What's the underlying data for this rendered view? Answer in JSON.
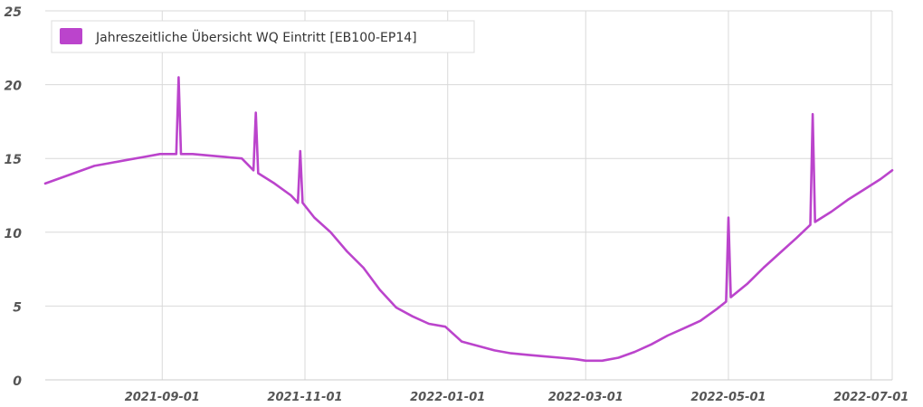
{
  "chart_data": {
    "type": "line",
    "title": "",
    "xlabel": "",
    "ylabel": "",
    "ylim": [
      0,
      25
    ],
    "xlim": [
      "2021-07-13",
      "2022-07-10"
    ],
    "yticks": [
      0,
      5,
      10,
      15,
      20,
      25
    ],
    "xticks": [
      "2021-09-01",
      "2021-11-01",
      "2022-01-01",
      "2022-03-01",
      "2022-05-01",
      "2022-07-01"
    ],
    "grid": true,
    "legend_position": "top-left",
    "series": [
      {
        "name": "Jahreszeitliche Übersicht WQ Eintritt [EB100-EP14]",
        "color": "#bb44cc",
        "x": [
          "2021-07-13",
          "2021-07-20",
          "2021-07-27",
          "2021-08-03",
          "2021-08-10",
          "2021-08-17",
          "2021-08-24",
          "2021-08-31",
          "2021-09-07",
          "2021-09-08",
          "2021-09-09",
          "2021-09-14",
          "2021-09-21",
          "2021-09-28",
          "2021-10-05",
          "2021-10-10",
          "2021-10-11",
          "2021-10-12",
          "2021-10-19",
          "2021-10-26",
          "2021-10-29",
          "2021-10-30",
          "2021-10-31",
          "2021-11-05",
          "2021-11-12",
          "2021-11-19",
          "2021-11-26",
          "2021-12-03",
          "2021-12-10",
          "2021-12-17",
          "2021-12-24",
          "2021-12-31",
          "2022-01-07",
          "2022-01-14",
          "2022-01-21",
          "2022-01-28",
          "2022-02-04",
          "2022-02-11",
          "2022-02-18",
          "2022-02-25",
          "2022-03-01",
          "2022-03-08",
          "2022-03-15",
          "2022-03-22",
          "2022-03-29",
          "2022-04-05",
          "2022-04-12",
          "2022-04-19",
          "2022-04-26",
          "2022-04-30",
          "2022-05-01",
          "2022-05-02",
          "2022-05-09",
          "2022-05-16",
          "2022-05-23",
          "2022-05-30",
          "2022-06-05",
          "2022-06-06",
          "2022-06-07",
          "2022-06-14",
          "2022-06-21",
          "2022-06-28",
          "2022-07-05",
          "2022-07-10"
        ],
        "y": [
          13.3,
          13.7,
          14.1,
          14.5,
          14.7,
          14.9,
          15.1,
          15.3,
          15.3,
          20.5,
          15.3,
          15.3,
          15.2,
          15.1,
          15.0,
          14.2,
          18.1,
          14.0,
          13.3,
          12.5,
          12.0,
          15.5,
          12.0,
          11.0,
          10.0,
          8.7,
          7.6,
          6.1,
          4.9,
          4.3,
          3.8,
          3.6,
          2.6,
          2.3,
          2.0,
          1.8,
          1.7,
          1.6,
          1.5,
          1.4,
          1.3,
          1.3,
          1.5,
          1.9,
          2.4,
          3.0,
          3.5,
          4.0,
          4.8,
          5.3,
          11.0,
          5.6,
          6.5,
          7.6,
          8.6,
          9.6,
          10.5,
          18.0,
          10.7,
          11.4,
          12.2,
          12.9,
          13.6,
          14.2
        ]
      }
    ]
  }
}
